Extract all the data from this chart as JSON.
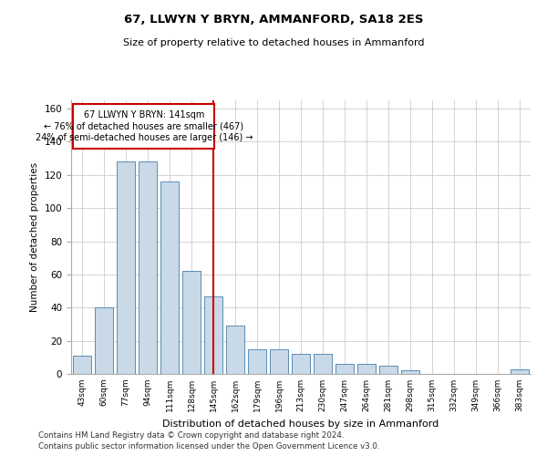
{
  "title1": "67, LLWYN Y BRYN, AMMANFORD, SA18 2ES",
  "title2": "Size of property relative to detached houses in Ammanford",
  "xlabel": "Distribution of detached houses by size in Ammanford",
  "ylabel": "Number of detached properties",
  "categories": [
    "43sqm",
    "60sqm",
    "77sqm",
    "94sqm",
    "111sqm",
    "128sqm",
    "145sqm",
    "162sqm",
    "179sqm",
    "196sqm",
    "213sqm",
    "230sqm",
    "247sqm",
    "264sqm",
    "281sqm",
    "298sqm",
    "315sqm",
    "332sqm",
    "349sqm",
    "366sqm",
    "383sqm"
  ],
  "values": [
    11,
    40,
    128,
    128,
    116,
    62,
    47,
    29,
    15,
    15,
    12,
    12,
    6,
    6,
    5,
    2,
    0,
    0,
    0,
    0,
    3
  ],
  "bar_color": "#c9d9e8",
  "bar_edge_color": "#5a8db5",
  "reference_line_x": 6,
  "reference_line_label": "67 LLWYN Y BRYN: 141sqm",
  "annotation1": "← 76% of detached houses are smaller (467)",
  "annotation2": "24% of semi-detached houses are larger (146) →",
  "vline_color": "#cc0000",
  "box_color": "#cc0000",
  "ylim": [
    0,
    165
  ],
  "yticks": [
    0,
    20,
    40,
    60,
    80,
    100,
    120,
    140,
    160
  ],
  "footnote1": "Contains HM Land Registry data © Crown copyright and database right 2024.",
  "footnote2": "Contains public sector information licensed under the Open Government Licence v3.0.",
  "background_color": "#ffffff",
  "grid_color": "#cccccc"
}
